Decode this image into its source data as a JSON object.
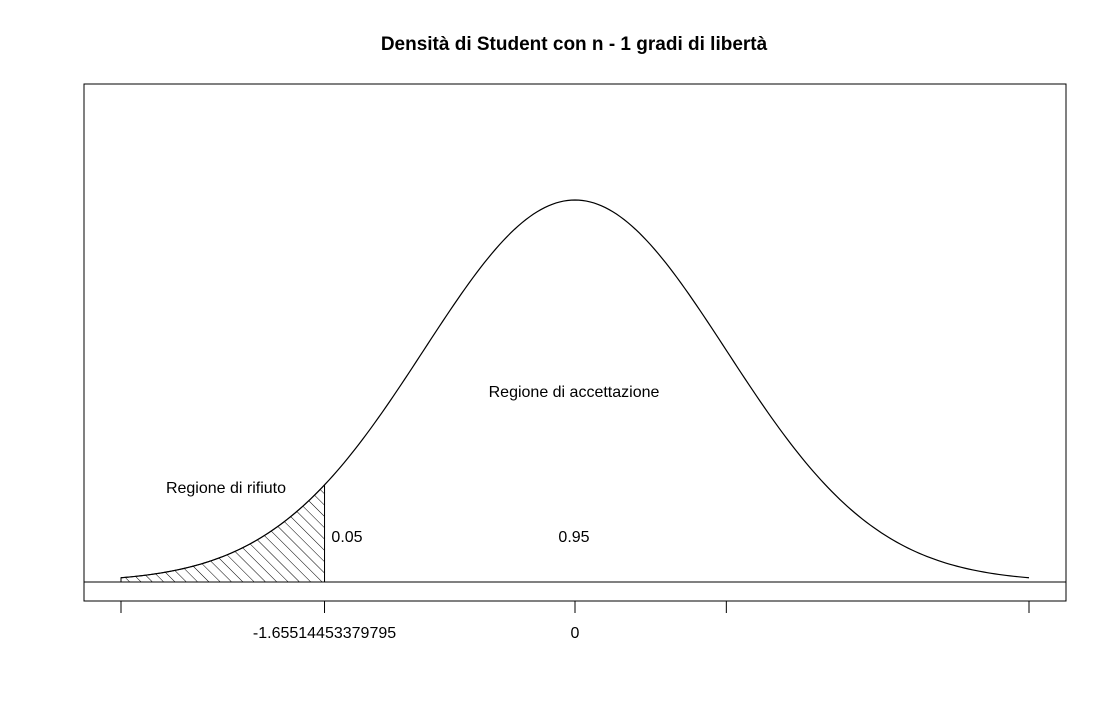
{
  "chart_data": {
    "type": "area",
    "title": "Densità di Student con n - 1 gradi di libertà",
    "xlabel": "",
    "ylabel": "",
    "distribution": "student-t",
    "xlim": [
      -3.0,
      3.0
    ],
    "ylim": [
      0,
      0.42
    ],
    "critical_value": -1.65514453379795,
    "shaded_region": [
      -3.0,
      -1.65514453379795
    ],
    "x_ticks": [
      -3,
      -1.65514453379795,
      0,
      1,
      3
    ],
    "x_tick_labels": [
      "",
      "-1.65514453379795",
      "0",
      "",
      ""
    ],
    "annotations": {
      "rejection_label": "Regione di rifiuto",
      "acceptance_label": "Regione di accettazione",
      "rejection_prob": "0.05",
      "acceptance_prob": "0.95"
    },
    "grid": false,
    "legend": "none",
    "colors": {
      "line": "#000000",
      "hatch": "#000000",
      "background": "#ffffff"
    }
  }
}
